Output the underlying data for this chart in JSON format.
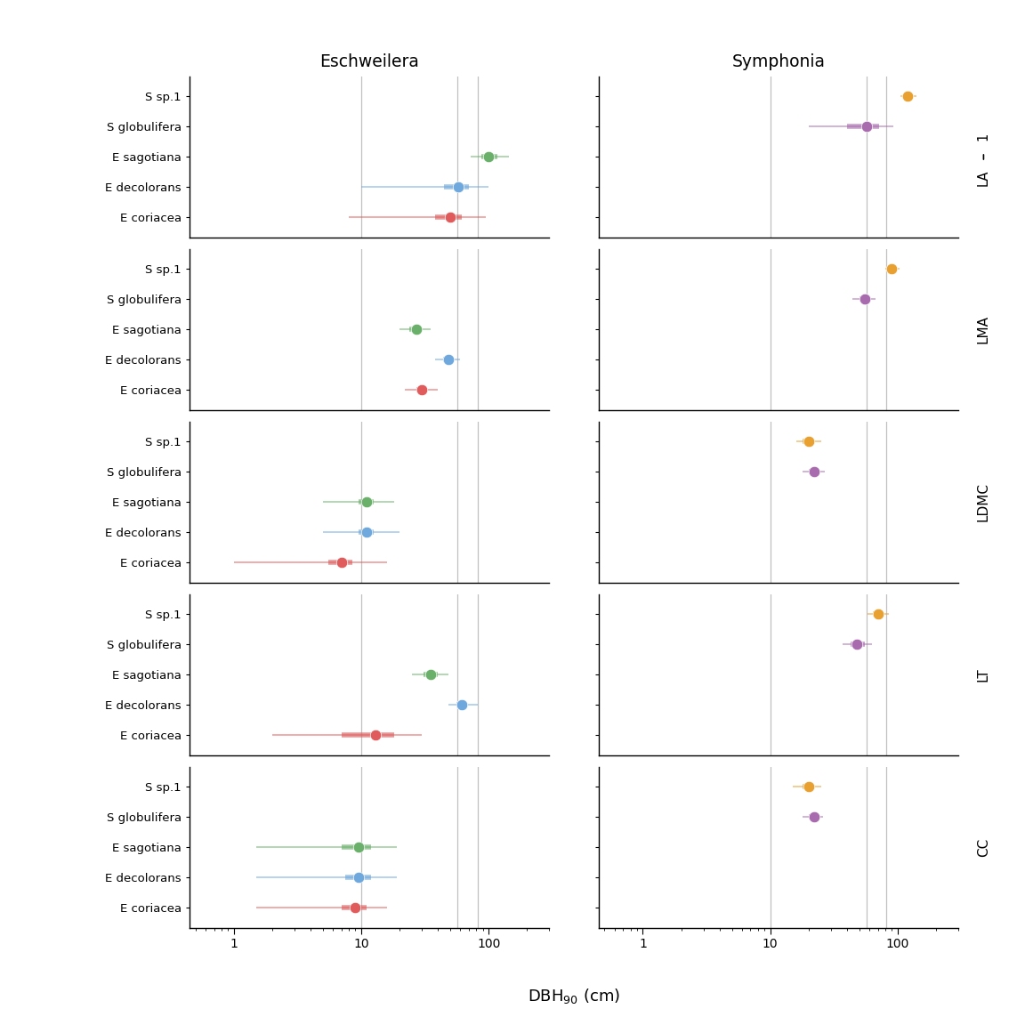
{
  "traits": [
    "LA",
    "LMA",
    "LDMC",
    "LT",
    "CC"
  ],
  "species_top_to_bottom": [
    "S sp.1",
    "S globulifera",
    "E sagotiana",
    "E decolorans",
    "E coriacea"
  ],
  "colors": {
    "E coriacea": "#E05C5C",
    "E decolorans": "#6FA8DC",
    "E sagotiana": "#6AAF6A",
    "S globulifera": "#A86CAE",
    "S sp.1": "#E8A030"
  },
  "vlines": [
    10,
    57,
    82
  ],
  "panel_titles": [
    "Eschweilera",
    "Symphonia"
  ],
  "xlabel": "DBH$_{90}$ (cm)",
  "xlim_esc": [
    0.45,
    300
  ],
  "xlim_sym": [
    0.45,
    300
  ],
  "esc_data": {
    "LA": {
      "E coriacea": [
        50,
        38,
        62,
        8,
        95
      ],
      "E decolorans": [
        58,
        45,
        70,
        10,
        100
      ],
      "E sagotiana": [
        100,
        88,
        118,
        72,
        145
      ]
    },
    "LMA": {
      "E coriacea": [
        30,
        27,
        33,
        22,
        40
      ],
      "E decolorans": [
        48,
        44,
        53,
        38,
        60
      ],
      "E sagotiana": [
        27,
        24,
        30,
        20,
        35
      ]
    },
    "LDMC": {
      "E coriacea": [
        7.0,
        5.5,
        8.5,
        1.0,
        16
      ],
      "E decolorans": [
        11.0,
        9.5,
        12.5,
        5.0,
        20
      ],
      "E sagotiana": [
        11.0,
        9.5,
        12.5,
        5.0,
        18
      ]
    },
    "LT": {
      "E coriacea": [
        13,
        7,
        18,
        2,
        30
      ],
      "E decolorans": [
        62,
        56,
        68,
        48,
        82
      ],
      "E sagotiana": [
        35,
        31,
        40,
        25,
        48
      ]
    },
    "CC": {
      "E coriacea": [
        9.0,
        7.0,
        11.0,
        1.5,
        16
      ],
      "E decolorans": [
        9.5,
        7.5,
        12.0,
        1.5,
        19
      ],
      "E sagotiana": [
        9.5,
        7.0,
        12.0,
        1.5,
        19
      ]
    }
  },
  "sym_data": {
    "LA": {
      "S globulifera": [
        57,
        40,
        72,
        20,
        92
      ],
      "S sp.1": [
        120,
        112,
        128,
        105,
        140
      ]
    },
    "LMA": {
      "S globulifera": [
        55,
        50,
        60,
        44,
        67
      ],
      "S sp.1": [
        90,
        85,
        96,
        80,
        103
      ]
    },
    "LDMC": {
      "S globulifera": [
        22,
        20,
        24,
        18,
        27
      ],
      "S sp.1": [
        20,
        18,
        22,
        16,
        25
      ]
    },
    "LT": {
      "S globulifera": [
        48,
        43,
        55,
        37,
        63
      ],
      "S sp.1": [
        70,
        64,
        76,
        58,
        86
      ]
    },
    "CC": {
      "S globulifera": [
        22,
        20,
        24,
        18,
        26
      ],
      "S sp.1": [
        20,
        18,
        22,
        15,
        25
      ]
    }
  }
}
